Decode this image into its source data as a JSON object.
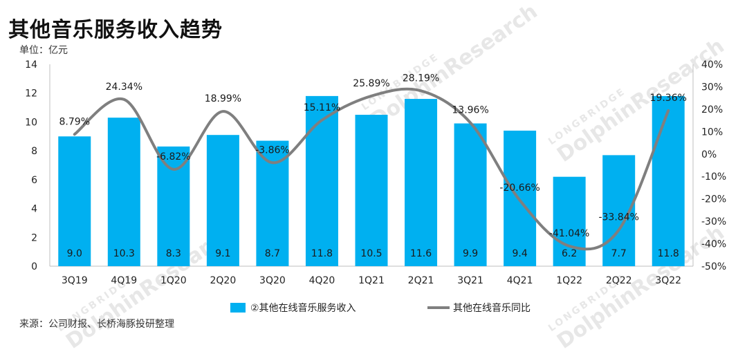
{
  "header": {
    "title": "其他音乐服务收入趋势",
    "unit": "单位：亿元"
  },
  "footer": {
    "source": "来源：公司财报、长桥海豚投研整理"
  },
  "watermark": {
    "brand": "LONGBRIDGE",
    "name": "DolphinResearch"
  },
  "chart_data": {
    "type": "bar",
    "categories": [
      "3Q19",
      "4Q19",
      "1Q20",
      "2Q20",
      "3Q20",
      "4Q20",
      "1Q21",
      "2Q21",
      "3Q21",
      "4Q21",
      "1Q22",
      "2Q22",
      "3Q22"
    ],
    "series": [
      {
        "name": "②其他在线音乐服务收入",
        "type": "bar",
        "axis": "left",
        "color": "#00B0F0",
        "values": [
          9.0,
          10.3,
          8.3,
          9.1,
          8.7,
          11.8,
          10.5,
          11.6,
          9.9,
          9.4,
          6.2,
          7.7,
          11.8
        ],
        "labels": [
          "9.0",
          "10.3",
          "8.3",
          "9.1",
          "8.7",
          "11.8",
          "10.5",
          "11.6",
          "9.9",
          "9.4",
          "6.2",
          "7.7",
          "11.8"
        ]
      },
      {
        "name": "其他在线音乐同比",
        "type": "line",
        "axis": "right",
        "color": "#7F7F7F",
        "values": [
          8.79,
          24.34,
          -6.82,
          18.99,
          -3.86,
          15.11,
          25.89,
          28.19,
          13.96,
          -20.66,
          -41.04,
          -33.84,
          19.36
        ],
        "labels": [
          "8.79%",
          "24.34%",
          "-6.82%",
          "18.99%",
          "-3.86%",
          "15.11%",
          "25.89%",
          "28.19%",
          "13.96%",
          "-20.66%",
          "-41.04%",
          "-33.84%",
          "19.36%"
        ]
      }
    ],
    "y_left": {
      "min": 0,
      "max": 14,
      "ticks": [
        "0",
        "2",
        "4",
        "6",
        "8",
        "10",
        "12",
        "14"
      ]
    },
    "y_right": {
      "min": -50,
      "max": 40,
      "ticks": [
        "-50%",
        "-40%",
        "-30%",
        "-20%",
        "-10%",
        "0%",
        "10%",
        "20%",
        "30%",
        "40%"
      ]
    },
    "legend_position": "bottom",
    "grid": false
  }
}
